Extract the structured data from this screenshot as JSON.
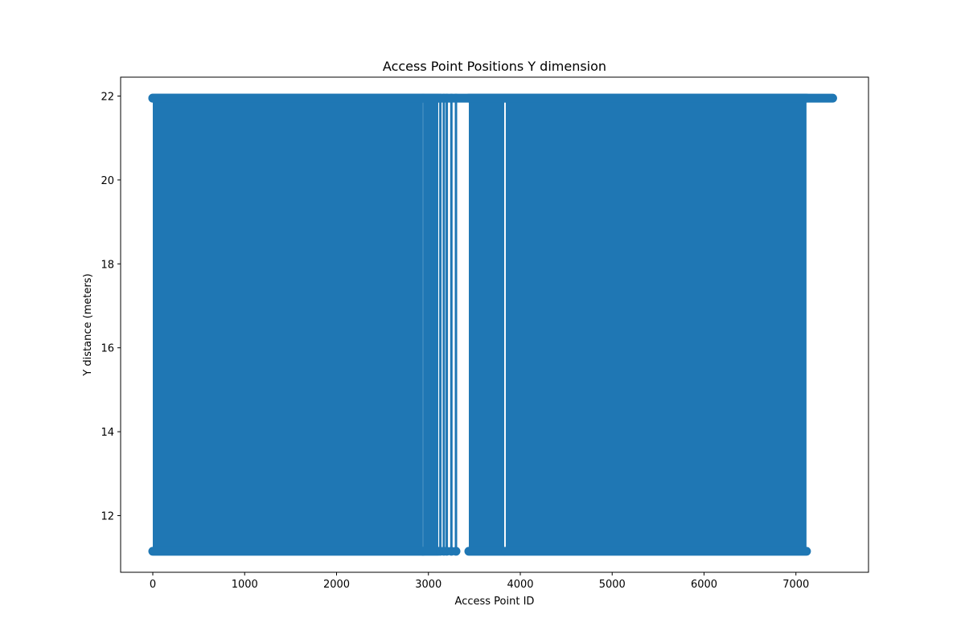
{
  "chart_data": {
    "type": "line",
    "title": "Access Point Positions Y dimension",
    "xlabel": "Access Point ID",
    "ylabel": "Y distance (meters)",
    "xlim": [
      -350,
      7790
    ],
    "ylim": [
      10.65,
      22.45
    ],
    "xticks": [
      0,
      1000,
      2000,
      3000,
      4000,
      5000,
      6000,
      7000
    ],
    "yticks": [
      12,
      14,
      16,
      18,
      20,
      22
    ],
    "xtick_labels": [
      "0",
      "1000",
      "2000",
      "3000",
      "4000",
      "5000",
      "6000",
      "7000"
    ],
    "ytick_labels": [
      "12",
      "14",
      "16",
      "18",
      "20",
      "22"
    ],
    "grid": false,
    "marker": "o",
    "series": [
      {
        "color": "#1f77b4",
        "y_values_alternate": [
          21.95,
          11.15
        ],
        "dense_x_ranges": [
          [
            0,
            2940
          ],
          [
            2942,
            3107
          ],
          [
            3440,
            3825
          ],
          [
            3842,
            7115
          ]
        ],
        "sparse_x": [
          3130,
          3168,
          3200,
          3250,
          3300
        ],
        "x_end_high_only": 7400
      }
    ]
  }
}
